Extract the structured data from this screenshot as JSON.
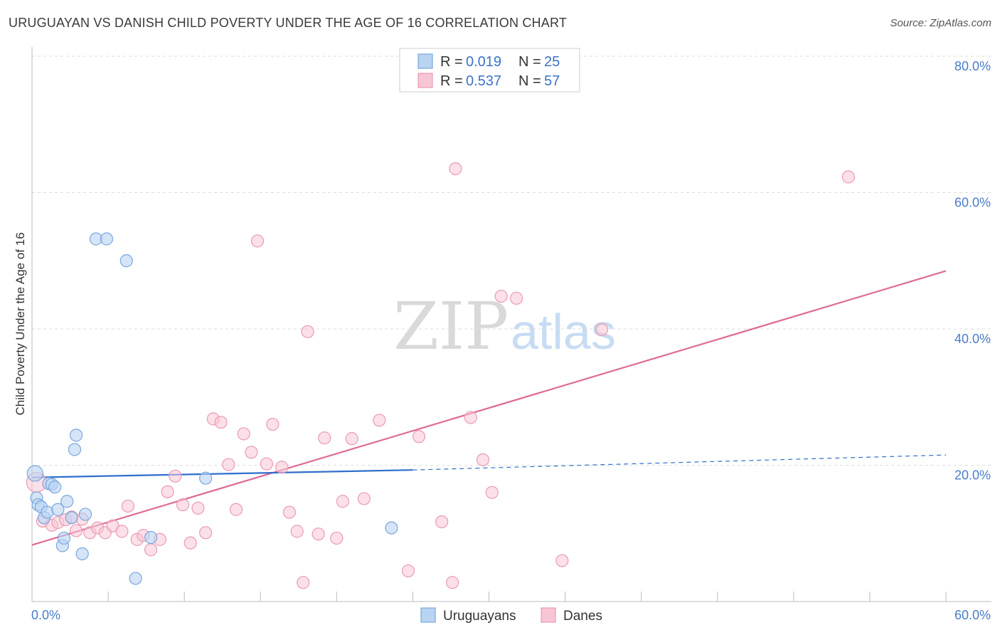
{
  "title": "URUGUAYAN VS DANISH CHILD POVERTY UNDER THE AGE OF 16 CORRELATION CHART",
  "source": "Source: ZipAtlas.com",
  "watermark": {
    "zip": "ZIP",
    "atlas": "atlas"
  },
  "legend": {
    "r_label": "R =",
    "n_label": "N =",
    "uruguayans": {
      "r": "0.019",
      "n": "25"
    },
    "danes": {
      "r": "0.537",
      "n": "57"
    }
  },
  "colors": {
    "uruguayans_fill": "#b9d3f2",
    "uruguayans_stroke": "#7aa6de",
    "uruguayans_line": "#2f6fcc",
    "danes_fill": "#f7c6d5",
    "danes_stroke": "#eb9ab4",
    "danes_line": "#e06a95",
    "grid": "#dddddd",
    "tick_label": "#4a7cc9"
  },
  "chart_data": {
    "type": "scatter",
    "xlabel": "",
    "ylabel": "Child Poverty Under the Age of 16",
    "xlim": [
      0,
      60
    ],
    "ylim": [
      0,
      80
    ],
    "x_tick_labels": [
      "0.0%",
      "60.0%"
    ],
    "y_ticks": [
      20,
      40,
      60,
      80
    ],
    "y_tick_labels": [
      "20.0%",
      "40.0%",
      "60.0%",
      "80.0%"
    ],
    "grid": true,
    "legend_position": "top-center",
    "series": [
      {
        "name": "Uruguayans",
        "r": 0.019,
        "n": 25,
        "trend": {
          "x": [
            0,
            25
          ],
          "y": [
            18.2,
            19.3
          ],
          "dashed_extension_to_x": 60,
          "dashed_end_y": 21.5
        },
        "points": [
          [
            0.2,
            18.8
          ],
          [
            0.3,
            15.2
          ],
          [
            0.4,
            14.2
          ],
          [
            0.6,
            13.9
          ],
          [
            0.8,
            12.3
          ],
          [
            1.0,
            13.1
          ],
          [
            1.1,
            17.3
          ],
          [
            1.3,
            17.2
          ],
          [
            1.5,
            16.8
          ],
          [
            1.7,
            13.5
          ],
          [
            2.0,
            8.2
          ],
          [
            2.1,
            9.3
          ],
          [
            2.3,
            14.7
          ],
          [
            2.6,
            12.3
          ],
          [
            2.8,
            22.3
          ],
          [
            2.9,
            24.4
          ],
          [
            3.3,
            7.0
          ],
          [
            3.5,
            12.8
          ],
          [
            4.2,
            53.2
          ],
          [
            4.9,
            53.2
          ],
          [
            6.2,
            50.0
          ],
          [
            6.8,
            3.4
          ],
          [
            7.8,
            9.4
          ],
          [
            11.4,
            18.1
          ],
          [
            23.6,
            10.8
          ]
        ]
      },
      {
        "name": "Danes",
        "r": 0.537,
        "n": 57,
        "trend": {
          "x": [
            0,
            60
          ],
          "y": [
            8.3,
            48.5
          ]
        },
        "points": [
          [
            0.3,
            17.5
          ],
          [
            0.7,
            11.8
          ],
          [
            1.3,
            11.2
          ],
          [
            1.7,
            11.6
          ],
          [
            2.2,
            12.0
          ],
          [
            2.6,
            12.4
          ],
          [
            2.9,
            10.4
          ],
          [
            3.3,
            12.1
          ],
          [
            3.8,
            10.1
          ],
          [
            4.3,
            10.8
          ],
          [
            4.8,
            10.1
          ],
          [
            5.3,
            11.1
          ],
          [
            5.9,
            10.3
          ],
          [
            6.3,
            14.0
          ],
          [
            6.9,
            9.1
          ],
          [
            7.3,
            9.7
          ],
          [
            7.8,
            7.6
          ],
          [
            8.4,
            9.1
          ],
          [
            8.9,
            16.1
          ],
          [
            9.4,
            18.4
          ],
          [
            9.9,
            14.2
          ],
          [
            10.4,
            8.6
          ],
          [
            10.9,
            13.7
          ],
          [
            11.4,
            10.1
          ],
          [
            11.9,
            26.8
          ],
          [
            12.4,
            26.3
          ],
          [
            12.9,
            20.1
          ],
          [
            13.4,
            13.5
          ],
          [
            13.9,
            24.6
          ],
          [
            14.4,
            21.9
          ],
          [
            14.8,
            52.9
          ],
          [
            15.4,
            20.2
          ],
          [
            15.8,
            26.0
          ],
          [
            16.4,
            19.7
          ],
          [
            16.9,
            13.1
          ],
          [
            17.4,
            10.3
          ],
          [
            17.8,
            2.8
          ],
          [
            18.1,
            39.6
          ],
          [
            18.8,
            9.9
          ],
          [
            19.2,
            24.0
          ],
          [
            20.0,
            9.3
          ],
          [
            20.4,
            14.7
          ],
          [
            21.0,
            23.9
          ],
          [
            21.8,
            15.1
          ],
          [
            22.8,
            26.6
          ],
          [
            24.7,
            4.5
          ],
          [
            25.4,
            24.2
          ],
          [
            26.9,
            11.7
          ],
          [
            27.6,
            2.8
          ],
          [
            27.8,
            63.5
          ],
          [
            28.8,
            27.0
          ],
          [
            29.6,
            20.8
          ],
          [
            30.2,
            16.0
          ],
          [
            30.8,
            44.8
          ],
          [
            31.8,
            44.5
          ],
          [
            34.8,
            6.0
          ],
          [
            37.4,
            39.9
          ],
          [
            53.6,
            62.3
          ]
        ]
      }
    ]
  },
  "bottom_legend": {
    "uruguayans": "Uruguayans",
    "danes": "Danes"
  }
}
